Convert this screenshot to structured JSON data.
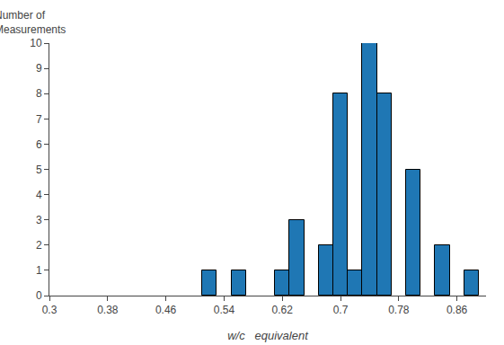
{
  "chart_data": {
    "type": "bar",
    "x": [
      0.52,
      0.56,
      0.62,
      0.64,
      0.68,
      0.7,
      0.72,
      0.74,
      0.76,
      0.8,
      0.84,
      0.88
    ],
    "values": [
      1,
      1,
      1,
      3,
      2,
      8,
      1,
      10,
      8,
      5,
      2,
      1
    ],
    "xlabel": "w/c   equivalent",
    "ylabel": "Number of\nMeasurements",
    "xlim": [
      0.3,
      0.9
    ],
    "ylim": [
      0,
      10
    ],
    "xticks": [
      0.3,
      0.38,
      0.46,
      0.54,
      0.62,
      0.7,
      0.78,
      0.86
    ],
    "yticks": [
      0,
      1,
      2,
      3,
      4,
      5,
      6,
      7,
      8,
      9,
      10
    ],
    "grid": false
  }
}
